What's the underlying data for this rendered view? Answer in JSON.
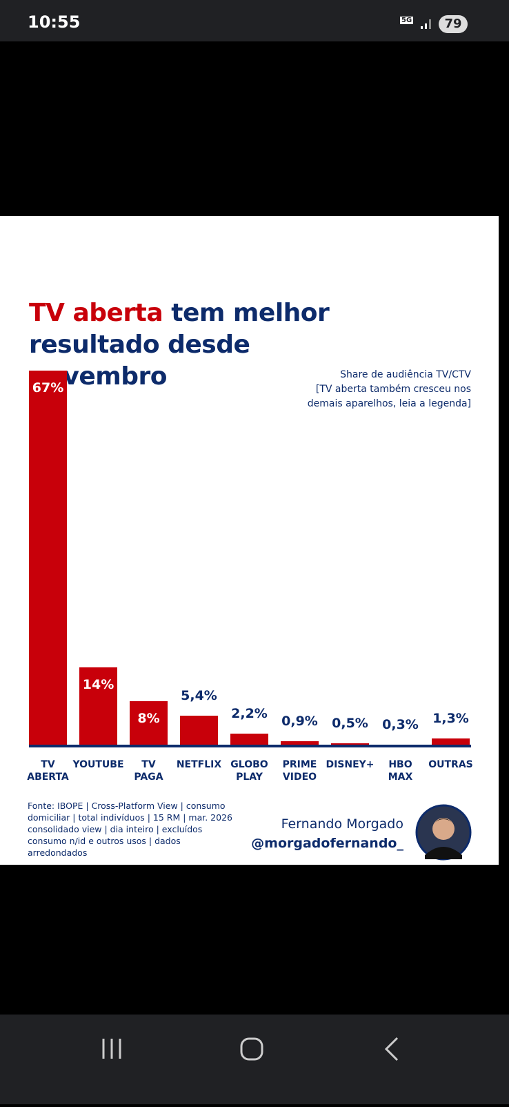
{
  "status_bar": {
    "time": "10:55",
    "network": "5G",
    "battery": "79"
  },
  "chart_data": {
    "type": "bar",
    "title": [
      "TV aberta",
      "tem melhor resultado desde novembro"
    ],
    "subtitle": "Share de audiência TV/CTV",
    "note": "[TV aberta também cresceu nos demais aparelhos, leia a legenda]",
    "categories": [
      "TV ABERTA",
      "YOUTUBE",
      "TV PAGA",
      "NETFLIX",
      "GLOBO PLAY",
      "PRIME VIDEO",
      "DISNEY+",
      "HBO MAX",
      "OUTRAS"
    ],
    "values": [
      67,
      14,
      8,
      5.4,
      2.2,
      0.9,
      0.5,
      0.3,
      1.3
    ],
    "value_labels": [
      "67%",
      "14%",
      "8%",
      "5,4%",
      "2,2%",
      "0,9%",
      "0,5%",
      "0,3%",
      "1,3%"
    ],
    "color": "#c8000a",
    "title_colors": [
      "#c8000a",
      "#0d2b6b"
    ]
  },
  "footer": {
    "source": "Fonte: IBOPE | Cross-Platform View | consumo domiciliar | total indivíduos | 15 RM | mar. 2026 consolidado view | dia inteiro | excluídos consumo n/id e outros usos |  dados arredondados",
    "author": "Fernando Morgado",
    "handle": "@morgadofernando_"
  }
}
